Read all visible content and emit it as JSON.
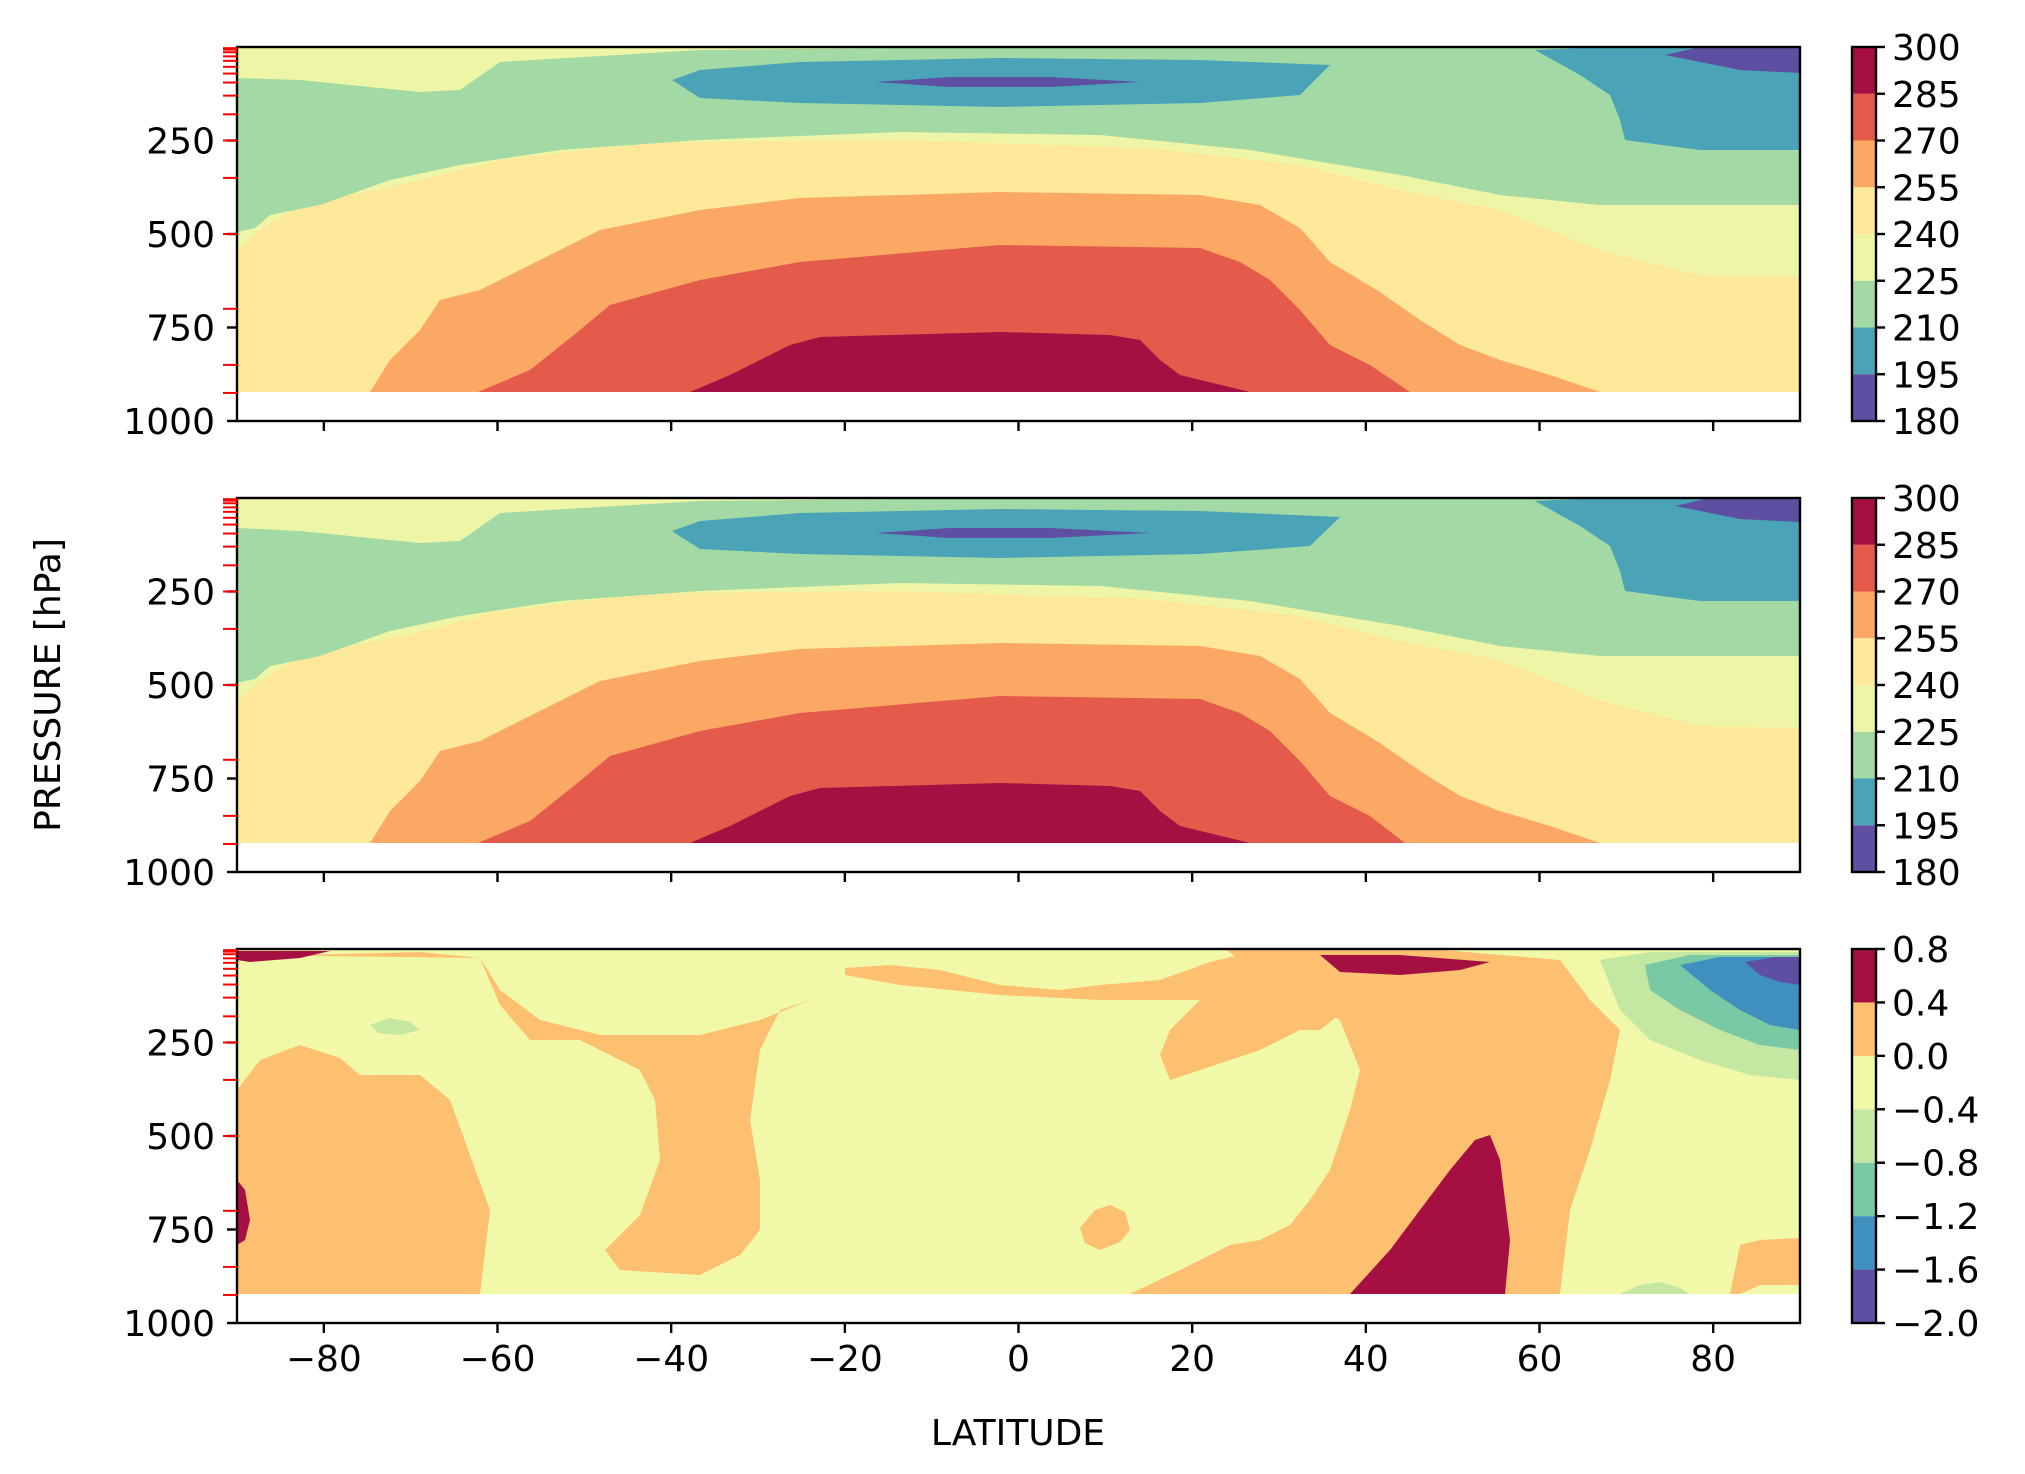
{
  "chart_data": [
    {
      "type": "contourf",
      "panel": "top",
      "colorbar": {
        "levels": [
          180,
          195,
          210,
          225,
          240,
          255,
          270,
          285,
          300
        ],
        "tick_labels": [
          "180",
          "195",
          "210",
          "225",
          "240",
          "255",
          "270",
          "285",
          "300"
        ],
        "colors": [
          "#5e4fa2",
          "#4aa3b6",
          "#a3d9a4",
          "#eef5a6",
          "#fde999",
          "#fba865",
          "#e45b4b",
          "#a50f42"
        ]
      },
      "x": {
        "range": [
          -90,
          90
        ],
        "ticks": [
          -80,
          -60,
          -40,
          -20,
          0,
          20,
          40,
          60,
          80
        ],
        "tick_labels": [
          "",
          "",
          "",
          "",
          "",
          "",
          "",
          "",
          ""
        ]
      },
      "y": {
        "range": [
          1000,
          0
        ],
        "ticks": [
          250,
          500,
          750,
          1000
        ],
        "tick_labels": [
          "250",
          "500",
          "750",
          "1000"
        ]
      },
      "data_bottom_pressure": 925,
      "description_of_field": "temperature bands: ~300 near surface in tropics (-37..27), decreasing upward to ~190 at ~100 hPa over the equator; polar stratosphere cold at 60-90N"
    },
    {
      "type": "contourf",
      "panel": "middle",
      "colorbar": {
        "levels": [
          180,
          195,
          210,
          225,
          240,
          255,
          270,
          285,
          300
        ],
        "tick_labels": [
          "180",
          "195",
          "210",
          "225",
          "240",
          "255",
          "270",
          "285",
          "300"
        ],
        "colors": [
          "#5e4fa2",
          "#4aa3b6",
          "#a3d9a4",
          "#eef5a6",
          "#fde999",
          "#fba865",
          "#e45b4b",
          "#a50f42"
        ]
      },
      "x": {
        "range": [
          -90,
          90
        ],
        "ticks": [
          -80,
          -60,
          -40,
          -20,
          0,
          20,
          40,
          60,
          80
        ],
        "tick_labels": [
          "",
          "",
          "",
          "",
          "",
          "",
          "",
          "",
          ""
        ]
      },
      "y": {
        "range": [
          1000,
          0
        ],
        "ticks": [
          250,
          500,
          750,
          1000
        ],
        "tick_labels": [
          "250",
          "500",
          "750",
          "1000"
        ]
      },
      "data_bottom_pressure": 925
    },
    {
      "type": "contourf",
      "panel": "bottom",
      "colorbar": {
        "levels": [
          -2.0,
          -1.6,
          -1.2,
          -0.8,
          -0.4,
          0.0,
          0.4,
          0.8
        ],
        "tick_labels": [
          "−2.0",
          "−1.6",
          "−1.2",
          "−0.8",
          "−0.4",
          "0.0",
          "0.4",
          "0.8"
        ],
        "colors": [
          "#5e4fa2",
          "#3f8fbf",
          "#79c9a5",
          "#c4e7a2",
          "#f1f8a8",
          "#fdbf70",
          "#a50f42"
        ]
      },
      "x": {
        "range": [
          -90,
          90
        ],
        "ticks": [
          -80,
          -60,
          -40,
          -20,
          0,
          20,
          40,
          60,
          80
        ],
        "tick_labels": [
          "−80",
          "−60",
          "−40",
          "−20",
          "0",
          "20",
          "40",
          "60",
          "80"
        ]
      },
      "y": {
        "range": [
          1000,
          0
        ],
        "ticks": [
          250,
          500,
          750,
          1000
        ],
        "tick_labels": [
          "250",
          "500",
          "750",
          "1000"
        ]
      },
      "data_bottom_pressure": 925
    }
  ],
  "labels": {
    "xlabel": "LATITUDE",
    "ylabel": "PRESSURE [hPa]"
  },
  "model_levels_hPa": [
    3,
    7,
    14,
    25,
    37,
    53,
    71,
    95,
    130,
    180,
    250,
    350,
    500,
    700,
    850,
    925
  ],
  "level_marker_color": "#ff0000"
}
